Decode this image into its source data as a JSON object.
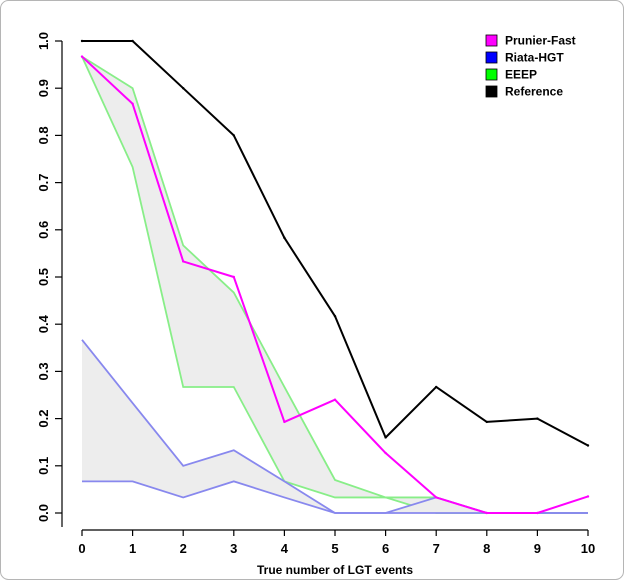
{
  "chart_data": {
    "type": "line",
    "xlabel": "True number of LGT events",
    "ylabel": "",
    "x": [
      0,
      1,
      2,
      3,
      4,
      5,
      6,
      7,
      8,
      9,
      10
    ],
    "xlim": [
      0,
      10
    ],
    "ylim": [
      0,
      1
    ],
    "x_ticks": [
      "0",
      "1",
      "2",
      "3",
      "4",
      "5",
      "6",
      "7",
      "8",
      "9",
      "10"
    ],
    "y_ticks": [
      "0.0",
      "0.1",
      "0.2",
      "0.3",
      "0.4",
      "0.5",
      "0.6",
      "0.7",
      "0.8",
      "0.9",
      "1.0"
    ],
    "grid": false,
    "legend_position": "top-right",
    "legend": [
      {
        "name": "Prunier-Fast",
        "color": "#ff00ff"
      },
      {
        "name": "Riata-HGT",
        "color": "#0000ff"
      },
      {
        "name": "EEEP",
        "color": "#00ff00"
      },
      {
        "name": "Reference",
        "color": "#000000"
      }
    ],
    "series": [
      {
        "name": "Reference",
        "color": "#000000",
        "values": [
          1.0,
          1.0,
          0.9,
          0.8,
          0.583,
          0.417,
          0.16,
          0.267,
          0.193,
          0.2,
          0.143
        ]
      },
      {
        "name": "Prunier-Fast",
        "color": "#ff00ff",
        "values": [
          0.967,
          0.867,
          0.533,
          0.5,
          0.193,
          0.24,
          0.127,
          0.033,
          0.0,
          0.0,
          0.035
        ]
      }
    ],
    "bands": [
      {
        "name": "EEEP",
        "color": "#88ee88",
        "fill": "#ededed",
        "upper": [
          0.967,
          0.9,
          0.567,
          0.467,
          0.267,
          0.07,
          0.033,
          0.033,
          0.0,
          0.0,
          0.0
        ],
        "lower": [
          0.967,
          0.733,
          0.267,
          0.267,
          0.067,
          0.033,
          0.033,
          0.0,
          0.0,
          0.0,
          0.0
        ]
      },
      {
        "name": "Riata-HGT",
        "color": "#8888ee",
        "fill": "#ededed",
        "upper": [
          0.367,
          0.233,
          0.1,
          0.133,
          0.067,
          0.0,
          0.0,
          0.033,
          0.0,
          0.0,
          0.0
        ],
        "lower": [
          0.067,
          0.067,
          0.033,
          0.067,
          0.033,
          0.0,
          0.0,
          0.0,
          0.0,
          0.0,
          0.0
        ]
      }
    ]
  }
}
